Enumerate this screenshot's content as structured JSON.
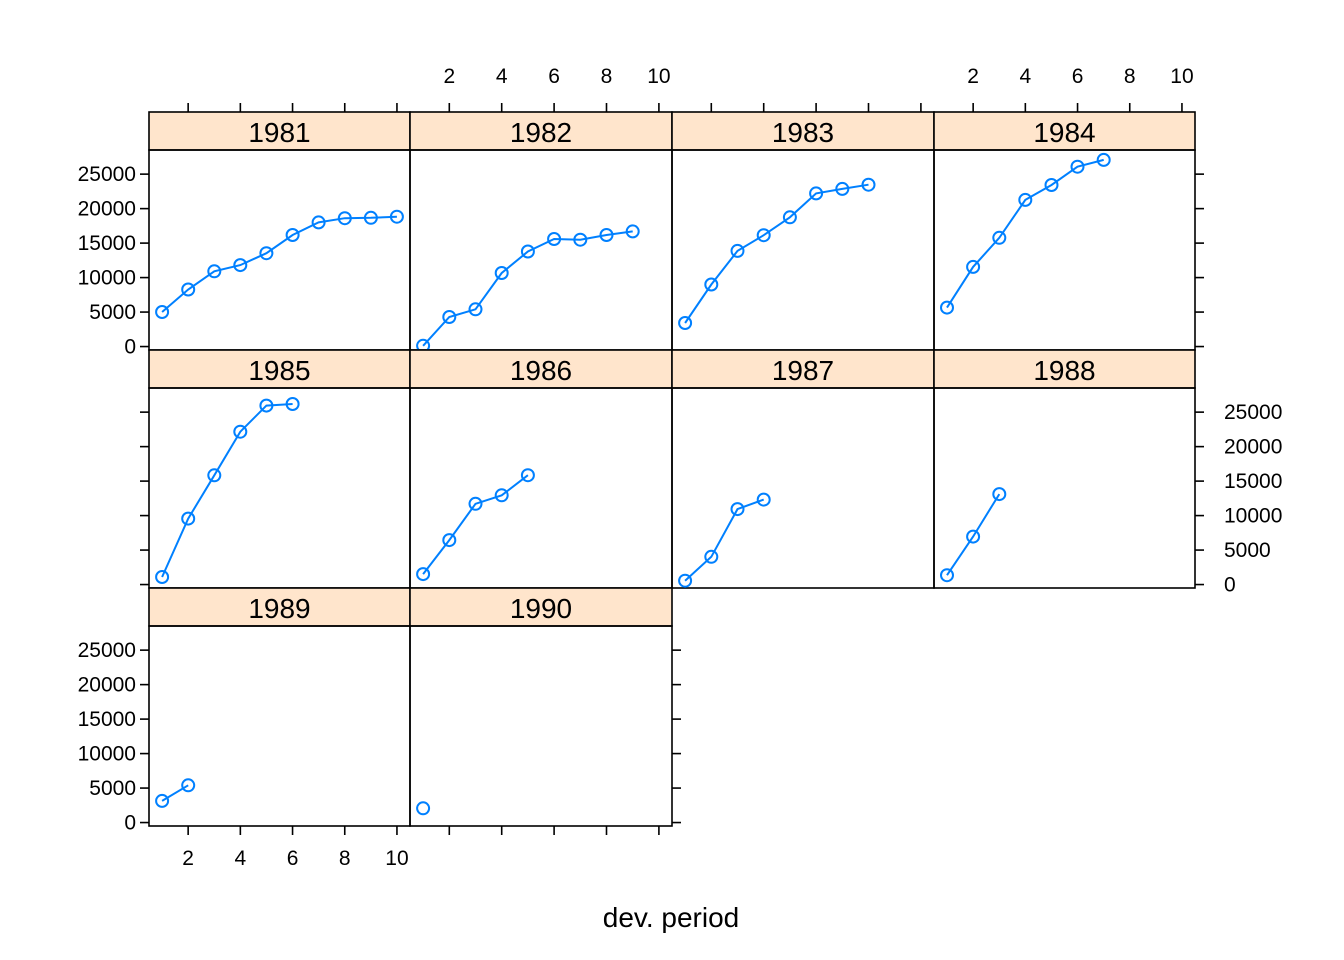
{
  "colors": {
    "strip": "#ffe5cc",
    "series": "#0080ff",
    "frame": "#000000"
  },
  "chart_data": {
    "type": "line",
    "layout": "trellis 4x3 panels",
    "xlabel": "dev. period",
    "ylabel": "",
    "xlim": [
      0.5,
      10.5
    ],
    "ylim": [
      -500,
      28500
    ],
    "x_ticks": [
      2,
      4,
      6,
      8,
      10
    ],
    "y_ticks": [
      0,
      5000,
      10000,
      15000,
      20000,
      25000
    ],
    "panels": [
      {
        "label": "1981",
        "x": [
          1,
          2,
          3,
          4,
          5,
          6,
          7,
          8,
          9,
          10
        ],
        "values": [
          5012,
          8269,
          10907,
          11805,
          13539,
          16181,
          18009,
          18608,
          18662,
          18834
        ]
      },
      {
        "label": "1982",
        "x": [
          1,
          2,
          3,
          4,
          5,
          6,
          7,
          8,
          9
        ],
        "values": [
          106,
          4285,
          5396,
          10666,
          13782,
          15599,
          15496,
          16169,
          16704
        ]
      },
      {
        "label": "1983",
        "x": [
          1,
          2,
          3,
          4,
          5,
          6,
          7,
          8
        ],
        "values": [
          3410,
          8992,
          13873,
          16141,
          18735,
          22214,
          22863,
          23466
        ]
      },
      {
        "label": "1984",
        "x": [
          1,
          2,
          3,
          4,
          5,
          6,
          7
        ],
        "values": [
          5655,
          11555,
          15766,
          21266,
          23425,
          26083,
          27067
        ]
      },
      {
        "label": "1985",
        "x": [
          1,
          2,
          3,
          4,
          5,
          6
        ],
        "values": [
          1092,
          9565,
          15836,
          22169,
          25955,
          26180
        ]
      },
      {
        "label": "1986",
        "x": [
          1,
          2,
          3,
          4,
          5
        ],
        "values": [
          1513,
          6445,
          11702,
          12935,
          15852
        ]
      },
      {
        "label": "1987",
        "x": [
          1,
          2,
          3,
          4
        ],
        "values": [
          557,
          4020,
          10946,
          12314
        ]
      },
      {
        "label": "1988",
        "x": [
          1,
          2,
          3
        ],
        "values": [
          1351,
          6947,
          13112
        ]
      },
      {
        "label": "1989",
        "x": [
          1,
          2
        ],
        "values": [
          3133,
          5395
        ]
      },
      {
        "label": "1990",
        "x": [
          1
        ],
        "values": [
          2063
        ]
      }
    ]
  }
}
